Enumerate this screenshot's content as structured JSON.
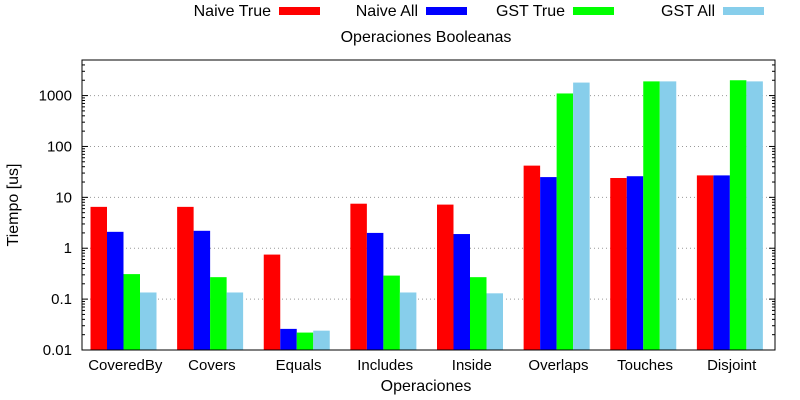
{
  "chart_data": {
    "type": "bar",
    "title": "Operaciones Booleanas",
    "xlabel": "Operaciones",
    "ylabel": "Tiempo [us]",
    "categories": [
      "CoveredBy",
      "Covers",
      "Equals",
      "Includes",
      "Inside",
      "Overlaps",
      "Touches",
      "Disjoint"
    ],
    "series": [
      {
        "name": "Naive True",
        "color": "#ff0000",
        "values": [
          6.5,
          6.5,
          0.75,
          7.5,
          7.2,
          42,
          24,
          27
        ]
      },
      {
        "name": "Naive All",
        "color": "#0000ff",
        "values": [
          2.1,
          2.2,
          0.026,
          2.0,
          1.9,
          25,
          26,
          27
        ]
      },
      {
        "name": "GST True",
        "color": "#00ff00",
        "values": [
          0.31,
          0.27,
          0.022,
          0.29,
          0.27,
          1100,
          1900,
          2000
        ]
      },
      {
        "name": "GST All",
        "color": "#87ceeb",
        "values": [
          0.135,
          0.135,
          0.024,
          0.135,
          0.13,
          1800,
          1900,
          1900
        ]
      }
    ],
    "y_scale": "log",
    "ylim": [
      0.01,
      5000
    ],
    "y_ticks": [
      0.01,
      0.1,
      1,
      10,
      100,
      1000
    ],
    "y_tick_labels": [
      "0.01",
      "0.1",
      "1",
      "10",
      "100",
      "1000"
    ],
    "grid": true,
    "legend_position": "top"
  }
}
